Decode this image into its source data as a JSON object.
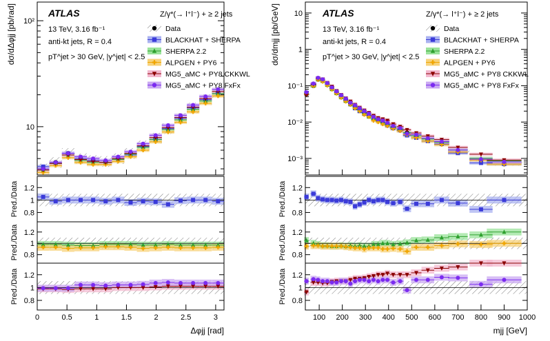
{
  "figure": {
    "experiment": "ATLAS"
  },
  "legend": {
    "process": "Z/γ*(→ l⁺l⁻) + ≥ 2 jets",
    "entries": [
      "Data",
      "BLACKHAT + SHERPA",
      "SHERPA 2.2",
      "ALPGEN + PY6",
      "MG5_aMC + PY8 CKKWL",
      "MG5_aMC + PY8 FxFx"
    ]
  },
  "info": {
    "energy": "13 TeV, 3.16 fb⁻¹",
    "jets": "anti-kt jets, R = 0.4",
    "cuts": "pT^jet > 30 GeV, |y^jet| < 2.5"
  },
  "colors": {
    "data": "#000000",
    "blackhat": "#3b3bd9",
    "sherpa": "#2ea02e",
    "alpgen": "#f0a500",
    "mg5_ckkwl": "#8b0000",
    "mg5_fxfx": "#7b2bf0",
    "blackhat_band": "#aab2f0",
    "sherpa_band": "#9be39b",
    "alpgen_band": "#f7d27a",
    "ckkwl_band": "#f3b8cf",
    "fxfx_band": "#c9a8f2"
  },
  "chart_data": [
    {
      "type": "scatter",
      "panel": "left-main",
      "ylabel": "dσ/dΔφjj [pb/rad]",
      "log_y": true,
      "ylim": [
        3.5,
        150
      ],
      "xlim": [
        0,
        3.14
      ],
      "yticks": [
        "10",
        "10²"
      ],
      "x": [
        0.1,
        0.31,
        0.52,
        0.73,
        0.94,
        1.15,
        1.36,
        1.57,
        1.78,
        1.99,
        2.2,
        2.41,
        2.62,
        2.83,
        3.04
      ],
      "series": [
        {
          "name": "Data",
          "values": [
            4.0,
            4.6,
            5.6,
            5.0,
            4.8,
            4.7,
            5.0,
            5.6,
            6.6,
            7.8,
            9.6,
            12.0,
            15.0,
            18.0,
            21.0
          ]
        },
        {
          "name": "BLACKHAT + SHERPA",
          "values": [
            4.2,
            4.5,
            5.6,
            5.0,
            4.8,
            4.6,
            5.0,
            5.4,
            6.5,
            7.6,
            9.6,
            12.0,
            15.0,
            18.0,
            20.5
          ]
        },
        {
          "name": "SHERPA 2.2",
          "values": [
            3.9,
            4.5,
            5.4,
            4.8,
            4.6,
            4.6,
            4.9,
            5.5,
            6.4,
            7.6,
            9.4,
            11.6,
            14.6,
            17.5,
            20.5
          ]
        },
        {
          "name": "ALPGEN + PY6",
          "values": [
            3.7,
            4.3,
            5.1,
            4.6,
            4.4,
            4.4,
            4.7,
            5.2,
            6.0,
            7.2,
            8.9,
            11.0,
            13.8,
            16.6,
            19.5
          ]
        },
        {
          "name": "MG5_aMC + PY8 CKKWL",
          "values": [
            3.9,
            4.5,
            5.4,
            4.9,
            4.7,
            4.6,
            5.0,
            5.6,
            6.6,
            7.9,
            9.8,
            12.2,
            15.3,
            18.4,
            21.5
          ]
        },
        {
          "name": "MG5_aMC + PY8 FxFx",
          "values": [
            4.0,
            4.6,
            5.6,
            5.2,
            5.0,
            4.8,
            5.2,
            5.8,
            6.9,
            8.3,
            10.3,
            12.8,
            16.0,
            19.3,
            22.5
          ]
        }
      ]
    },
    {
      "type": "scatter",
      "panel": "left-ratios",
      "ylabel": "Pred./Data",
      "xlabel": "Δφjj [rad]",
      "xlim": [
        0,
        3.14
      ],
      "ylim": [
        0.65,
        1.38
      ],
      "yticks": [
        "0.8",
        "1",
        "1.2"
      ],
      "xticks": [
        "0",
        "0.5",
        "1",
        "1.5",
        "2",
        "2.5",
        "3"
      ],
      "x": [
        0.1,
        0.31,
        0.52,
        0.73,
        0.94,
        1.15,
        1.36,
        1.57,
        1.78,
        1.99,
        2.2,
        2.41,
        2.62,
        2.83,
        3.04
      ],
      "series": [
        {
          "name": "BLACKHAT + SHERPA",
          "values": [
            1.05,
            0.98,
            1.0,
            1.0,
            1.0,
            0.98,
            1.0,
            0.96,
            0.98,
            0.97,
            0.93,
            0.99,
            1.0,
            1.0,
            0.98
          ]
        },
        {
          "name": "SHERPA 2.2",
          "values": [
            0.98,
            0.98,
            0.97,
            0.96,
            0.96,
            0.98,
            0.98,
            0.98,
            0.97,
            0.97,
            0.98,
            0.97,
            0.97,
            0.97,
            0.97
          ]
        },
        {
          "name": "ALPGEN + PY6",
          "values": [
            0.93,
            0.93,
            0.91,
            0.92,
            0.92,
            0.94,
            0.94,
            0.93,
            0.91,
            0.92,
            0.93,
            0.92,
            0.92,
            0.92,
            0.93
          ]
        },
        {
          "name": "MG5_aMC + PY8 CKKWL",
          "values": [
            0.98,
            0.98,
            0.97,
            0.98,
            0.98,
            0.98,
            1.0,
            1.0,
            1.0,
            1.01,
            1.02,
            1.02,
            1.02,
            1.02,
            1.02
          ]
        },
        {
          "name": "MG5_aMC + PY8 FxFx",
          "values": [
            0.99,
            0.99,
            0.99,
            1.04,
            1.04,
            1.03,
            1.04,
            1.04,
            1.05,
            1.07,
            1.08,
            1.07,
            1.07,
            1.07,
            1.07
          ]
        }
      ]
    },
    {
      "type": "scatter",
      "panel": "right-main",
      "ylabel": "dσ/dmjj [pb/GeV]",
      "log_y": true,
      "ylim": [
        0.00035,
        20
      ],
      "xlim": [
        40,
        1000
      ],
      "yticks": [
        "10⁻³",
        "10⁻²",
        "10⁻¹",
        "1",
        "10"
      ],
      "x": [
        45,
        75,
        95,
        115,
        135,
        155,
        175,
        195,
        215,
        235,
        255,
        275,
        295,
        315,
        335,
        355,
        375,
        395,
        420,
        450,
        480,
        520,
        570,
        630,
        700,
        800,
        900
      ],
      "series": [
        {
          "name": "Data",
          "values": [
            0.06,
            0.1,
            0.15,
            0.14,
            0.11,
            0.085,
            0.065,
            0.05,
            0.04,
            0.032,
            0.027,
            0.022,
            0.018,
            0.015,
            0.012,
            0.011,
            0.0095,
            0.0085,
            0.0072,
            0.0062,
            0.005,
            0.004,
            0.0032,
            0.0025,
            0.0015,
            0.0009,
            0.0007
          ]
        },
        {
          "name": "BLACKHAT + SHERPA",
          "values": [
            0.063,
            0.105,
            0.155,
            0.14,
            0.11,
            0.085,
            0.064,
            0.05,
            0.039,
            0.031,
            0.024,
            0.02,
            0.017,
            0.015,
            0.012,
            0.011,
            0.0095,
            0.0082,
            0.0068,
            0.006,
            0.0043,
            0.0037,
            0.003,
            0.0025,
            0.0014,
            0.00075,
            0.0007
          ]
        },
        {
          "name": "SHERPA 2.2",
          "values": [
            0.062,
            0.1,
            0.15,
            0.135,
            0.105,
            0.08,
            0.062,
            0.048,
            0.038,
            0.031,
            0.025,
            0.021,
            0.017,
            0.014,
            0.012,
            0.011,
            0.0095,
            0.0085,
            0.0072,
            0.0062,
            0.0051,
            0.0042,
            0.0034,
            0.0028,
            0.0017,
            0.001,
            0.00085
          ]
        },
        {
          "name": "ALPGEN + PY6",
          "values": [
            0.058,
            0.098,
            0.145,
            0.13,
            0.102,
            0.079,
            0.061,
            0.047,
            0.037,
            0.03,
            0.024,
            0.02,
            0.016,
            0.014,
            0.011,
            0.01,
            0.0088,
            0.0078,
            0.0066,
            0.0057,
            0.0045,
            0.0037,
            0.003,
            0.0024,
            0.0015,
            0.0009,
            0.0007
          ]
        },
        {
          "name": "MG5_aMC + PY8 CKKWL",
          "values": [
            0.057,
            0.11,
            0.16,
            0.15,
            0.12,
            0.095,
            0.072,
            0.056,
            0.045,
            0.037,
            0.03,
            0.025,
            0.021,
            0.018,
            0.015,
            0.013,
            0.012,
            0.011,
            0.0088,
            0.0075,
            0.0061,
            0.005,
            0.0041,
            0.0033,
            0.002,
            0.0013,
            0.0009
          ]
        },
        {
          "name": "MG5_aMC + PY8 FxFx",
          "values": [
            0.066,
            0.115,
            0.165,
            0.15,
            0.118,
            0.09,
            0.07,
            0.055,
            0.044,
            0.034,
            0.029,
            0.024,
            0.02,
            0.017,
            0.014,
            0.012,
            0.011,
            0.0095,
            0.0078,
            0.0068,
            0.0048,
            0.0045,
            0.0036,
            0.0029,
            0.0017,
            0.00095,
            0.0008
          ]
        }
      ]
    },
    {
      "type": "scatter",
      "panel": "right-ratios",
      "ylabel": "Pred./Data",
      "xlabel": "mjj [GeV]",
      "xlim": [
        40,
        1000
      ],
      "ylim": [
        0.65,
        1.38
      ],
      "yticks": [
        "0.8",
        "1",
        "1.2"
      ],
      "xticks": [
        "100",
        "200",
        "300",
        "400",
        "500",
        "600",
        "700",
        "800",
        "900",
        "1000"
      ],
      "x": [
        45,
        75,
        95,
        115,
        135,
        155,
        175,
        195,
        215,
        235,
        255,
        275,
        295,
        315,
        335,
        355,
        375,
        395,
        420,
        450,
        480,
        520,
        570,
        630,
        700,
        800,
        900
      ],
      "series": [
        {
          "name": "BLACKHAT + SHERPA",
          "values": [
            1.05,
            1.1,
            1.03,
            1.01,
            1.0,
            1.0,
            0.99,
            1.0,
            0.98,
            0.97,
            0.9,
            0.93,
            0.96,
            1.0,
            0.98,
            1.0,
            1.0,
            0.97,
            0.95,
            0.97,
            0.86,
            0.94,
            0.94,
            1.0,
            0.95,
            0.85,
            1.0
          ]
        },
        {
          "name": "SHERPA 2.2",
          "values": [
            1.05,
            1.0,
            0.98,
            0.96,
            0.96,
            0.95,
            0.95,
            0.96,
            0.95,
            0.96,
            0.95,
            0.96,
            0.95,
            0.95,
            0.98,
            0.98,
            1.0,
            1.0,
            0.98,
            0.99,
            1.01,
            1.05,
            1.06,
            1.1,
            1.12,
            1.15,
            1.2
          ]
        },
        {
          "name": "ALPGEN + PY6",
          "values": [
            0.95,
            0.96,
            0.96,
            0.95,
            0.95,
            0.95,
            0.95,
            0.95,
            0.94,
            0.93,
            0.92,
            0.92,
            0.9,
            0.92,
            0.92,
            0.92,
            0.9,
            0.9,
            0.91,
            0.9,
            0.86,
            0.93,
            0.93,
            0.96,
            0.99,
            0.98,
            1.0
          ]
        },
        {
          "name": "MG5_aMC + PY8 CKKWL",
          "values": [
            0.93,
            1.08,
            1.08,
            1.07,
            1.07,
            1.09,
            1.1,
            1.1,
            1.1,
            1.12,
            1.14,
            1.14,
            1.15,
            1.17,
            1.18,
            1.2,
            1.2,
            1.22,
            1.2,
            1.2,
            1.2,
            1.23,
            1.27,
            1.3,
            1.32,
            1.38,
            1.38
          ]
        },
        {
          "name": "MG5_aMC + PY8 FxFx",
          "values": [
            1.1,
            1.13,
            1.12,
            1.1,
            1.1,
            1.08,
            1.08,
            1.1,
            1.1,
            1.06,
            1.1,
            1.12,
            1.12,
            1.1,
            1.12,
            1.1,
            1.12,
            1.12,
            1.08,
            1.1,
            0.96,
            1.12,
            1.12,
            1.16,
            1.15,
            1.05,
            1.12
          ]
        }
      ]
    }
  ]
}
